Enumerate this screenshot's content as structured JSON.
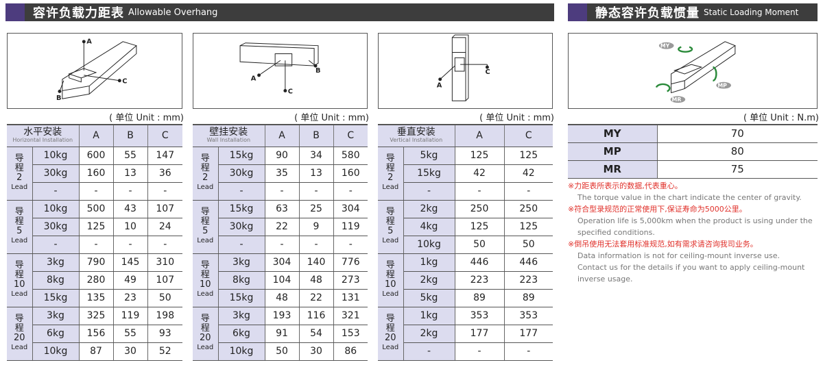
{
  "left_title": {
    "zh": "容许负载力距表",
    "en": "Allowable Overhang"
  },
  "right_title": {
    "zh": "静态容许负载惯量",
    "en": "Static Loading Moment"
  },
  "diagram_labels": {
    "A": "A",
    "B": "B",
    "C": "C",
    "MY": "MY",
    "MP": "MP",
    "MR": "MR"
  },
  "unit_mm": "( 单位 Unit : mm)",
  "unit_nm": "( 单位 Unit : N.m)",
  "tables": [
    {
      "title_zh": "水平安装",
      "title_en": "Horizontal Installation",
      "cols": [
        "A",
        "B",
        "C"
      ],
      "groups": [
        {
          "zh": "导程",
          "lead": "2",
          "en": "Lead",
          "rows": [
            [
              "10kg",
              "600",
              "55",
              "147"
            ],
            [
              "30kg",
              "160",
              "13",
              "36"
            ],
            [
              "-",
              "-",
              "-",
              "-"
            ]
          ]
        },
        {
          "zh": "导程",
          "lead": "5",
          "en": "Lead",
          "rows": [
            [
              "10kg",
              "500",
              "43",
              "107"
            ],
            [
              "30kg",
              "125",
              "10",
              "24"
            ],
            [
              "-",
              "-",
              "-",
              "-"
            ]
          ]
        },
        {
          "zh": "导程",
          "lead": "10",
          "en": "Lead",
          "rows": [
            [
              "3kg",
              "790",
              "145",
              "310"
            ],
            [
              "8kg",
              "280",
              "49",
              "107"
            ],
            [
              "15kg",
              "135",
              "23",
              "50"
            ]
          ]
        },
        {
          "zh": "导程",
          "lead": "20",
          "en": "Lead",
          "rows": [
            [
              "3kg",
              "325",
              "119",
              "198"
            ],
            [
              "6kg",
              "156",
              "55",
              "93"
            ],
            [
              "10kg",
              "87",
              "30",
              "52"
            ]
          ]
        }
      ]
    },
    {
      "title_zh": "壁挂安装",
      "title_en": "Wall Installation",
      "cols": [
        "A",
        "B",
        "C"
      ],
      "groups": [
        {
          "zh": "导程",
          "lead": "2",
          "en": "Lead",
          "rows": [
            [
              "15kg",
              "90",
              "34",
              "580"
            ],
            [
              "30kg",
              "35",
              "13",
              "160"
            ],
            [
              "-",
              "-",
              "-",
              "-"
            ]
          ]
        },
        {
          "zh": "导程",
          "lead": "5",
          "en": "Lead",
          "rows": [
            [
              "15kg",
              "63",
              "25",
              "304"
            ],
            [
              "30kg",
              "22",
              "9",
              "119"
            ],
            [
              "-",
              "-",
              "-",
              "-"
            ]
          ]
        },
        {
          "zh": "导程",
          "lead": "10",
          "en": "Lead",
          "rows": [
            [
              "3kg",
              "304",
              "140",
              "776"
            ],
            [
              "8kg",
              "104",
              "48",
              "273"
            ],
            [
              "15kg",
              "48",
              "22",
              "131"
            ]
          ]
        },
        {
          "zh": "导程",
          "lead": "20",
          "en": "Lead",
          "rows": [
            [
              "3kg",
              "193",
              "116",
              "321"
            ],
            [
              "6kg",
              "91",
              "54",
              "153"
            ],
            [
              "10kg",
              "50",
              "30",
              "86"
            ]
          ]
        }
      ]
    },
    {
      "title_zh": "垂直安装",
      "title_en": "Vertical Installation",
      "cols": [
        "A",
        "C"
      ],
      "groups": [
        {
          "zh": "导程",
          "lead": "2",
          "en": "Lead",
          "rows": [
            [
              "5kg",
              "125",
              "125"
            ],
            [
              "15kg",
              "42",
              "42"
            ],
            [
              "-",
              "-",
              "-"
            ]
          ]
        },
        {
          "zh": "导程",
          "lead": "5",
          "en": "Lead",
          "rows": [
            [
              "2kg",
              "250",
              "250"
            ],
            [
              "4kg",
              "125",
              "125"
            ],
            [
              "10kg",
              "50",
              "50"
            ]
          ]
        },
        {
          "zh": "导程",
          "lead": "10",
          "en": "Lead",
          "rows": [
            [
              "1kg",
              "446",
              "446"
            ],
            [
              "2kg",
              "223",
              "223"
            ],
            [
              "5kg",
              "89",
              "89"
            ]
          ]
        },
        {
          "zh": "导程",
          "lead": "20",
          "en": "Lead",
          "rows": [
            [
              "1kg",
              "353",
              "353"
            ],
            [
              "2kg",
              "177",
              "177"
            ],
            [
              "-",
              "-",
              "-"
            ]
          ]
        }
      ]
    }
  ],
  "moments": [
    [
      "MY",
      "70"
    ],
    [
      "MP",
      "80"
    ],
    [
      "MR",
      "75"
    ]
  ],
  "notes": [
    {
      "zh": "※力距表所表示的数据,代表重心。",
      "en": [
        "The torque value in the chart indicate the center of gravity."
      ]
    },
    {
      "zh": "※符合型录规范的正常使用下,保证寿命为5000公里。",
      "en": [
        "Operation life is 5,000km when the product is using under the",
        "specified conditions."
      ]
    },
    {
      "zh": "※倒吊使用无法套用标准规范,如有需求请咨询我司业务。",
      "en": [
        "Data information is not for ceiling-mount inverse use.",
        "Contact us for the details if you want to apply ceiling-mount",
        "inverse usage."
      ]
    }
  ],
  "colors": {
    "title_bar": "#3d3d3d",
    "accent": "#4d3c7e",
    "header_fill": "#dcdcef",
    "note_red": "#e0302a"
  }
}
